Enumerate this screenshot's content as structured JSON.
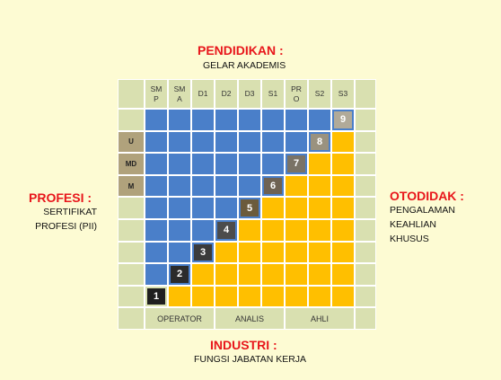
{
  "top": {
    "title": "PENDIDIKAN :",
    "subtitle": "GELAR AKADEMIS"
  },
  "left": {
    "title": "PROFESI :",
    "line1": "SERTIFIKAT",
    "line2": "PROFESI (PII)"
  },
  "right": {
    "title": "OTODIDAK :",
    "line1": "PENGALAMAN",
    "line2": "KEAHLIAN",
    "line3": "KHUSUS"
  },
  "bottom": {
    "title": "INDUSTRI :",
    "subtitle": "FUNGSI JABATAN KERJA"
  },
  "columns": [
    "SM\nP",
    "SM\nA",
    "D1",
    "D2",
    "D3",
    "S1",
    "PR\nO",
    "S2",
    "S3"
  ],
  "row_labels": [
    "",
    "",
    "U",
    "MD",
    "M",
    "",
    "",
    "",
    "",
    ""
  ],
  "levels": [
    "1",
    "2",
    "3",
    "4",
    "5",
    "6",
    "7",
    "8",
    "9"
  ],
  "footer": [
    "OPERATOR",
    "ANALIS",
    "AHLI"
  ],
  "colors": {
    "blue": "#4a7fc9",
    "yellow": "#ffbf00",
    "light": "#d9e0b0",
    "label_tan": "#b0a27c",
    "red_title": "#e8161b",
    "badge_dark": "#2b2b2b",
    "badge_mid": "#6b5b3c",
    "badge_light": "#a9a08c"
  }
}
